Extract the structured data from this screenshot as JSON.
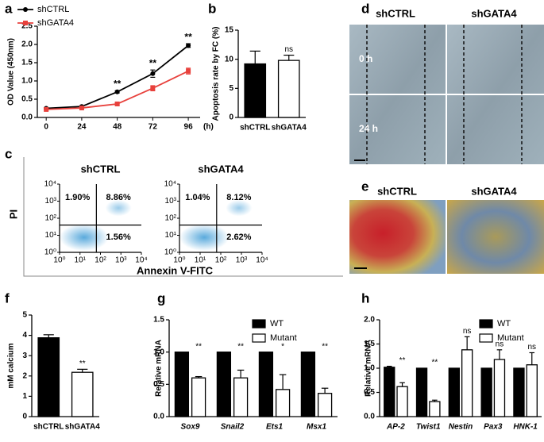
{
  "chart_data": [
    {
      "type": "line",
      "panel": "a",
      "ylabel": "OD Value (450nm)",
      "xlabel": "(h)",
      "x": [
        0,
        24,
        48,
        72,
        96
      ],
      "xlim": [
        -6,
        104
      ],
      "xticks": [
        0,
        24,
        48,
        72,
        96
      ],
      "ylim": [
        0,
        2.5
      ],
      "yticks": [
        {
          "value": 0,
          "label": "0.0"
        },
        0.5,
        {
          "value": 1,
          "label": "1.0"
        },
        1.5,
        {
          "value": 2,
          "label": "2.0"
        },
        2.5
      ],
      "series": [
        {
          "name": "shCTRL",
          "color": "#000000",
          "marker": "circle",
          "values": [
            0.25,
            0.3,
            0.7,
            1.2,
            1.97
          ],
          "errors": [
            0.02,
            0.02,
            0.03,
            0.1,
            0.05
          ]
        },
        {
          "name": "shGATA4",
          "color": "#e8413c",
          "marker": "square",
          "values": [
            0.22,
            0.26,
            0.37,
            0.8,
            1.27
          ],
          "errors": [
            0.02,
            0.02,
            0.03,
            0.07,
            0.08
          ]
        }
      ],
      "annotations": [
        null,
        null,
        "**",
        "**",
        "**"
      ],
      "legend": "upper left"
    },
    {
      "type": "bar",
      "panel": "b",
      "ylabel": "Apoptosis rate by FC (%)",
      "categories": [
        "shCTRL",
        "shGATA4"
      ],
      "values": [
        9.2,
        9.8
      ],
      "errors": [
        2.2,
        0.9
      ],
      "colors": [
        "#000000",
        "#ffffff"
      ],
      "ylim": [
        0,
        15
      ],
      "yticks": [
        0,
        5,
        10,
        15
      ],
      "annotations": [
        null,
        "ns"
      ]
    },
    {
      "type": "scatter",
      "panel": "c",
      "xlabel": "Annexin V-FITC",
      "ylabel": "PI",
      "xscale": "log",
      "yscale": "log",
      "xlim": [
        1,
        10000
      ],
      "ylim": [
        1,
        10000
      ],
      "xticks": [
        {
          "value": 1,
          "label": "10⁰"
        },
        {
          "value": 10,
          "label": "10¹"
        },
        {
          "value": 100,
          "label": "10²"
        },
        {
          "value": 1000,
          "label": "10³"
        },
        {
          "value": 10000,
          "label": "10⁴"
        }
      ],
      "yticks": [
        {
          "value": 1,
          "label": "10⁰"
        },
        {
          "value": 10,
          "label": "10¹"
        },
        {
          "value": 100,
          "label": "10²"
        },
        {
          "value": 1000,
          "label": "10³"
        },
        {
          "value": 10000,
          "label": "10⁴"
        }
      ],
      "subplots": [
        {
          "title": "shCTRL",
          "values": [
            1.9,
            8.86,
            1.56
          ],
          "value_labels": [
            "1.90%",
            "8.86%",
            "1.56%"
          ]
        },
        {
          "title": "shGATA4",
          "values": [
            1.04,
            8.12,
            2.62
          ],
          "value_labels": [
            "1.04%",
            "8.12%",
            "2.62%"
          ]
        }
      ]
    },
    {
      "type": "bar",
      "panel": "f",
      "ylabel": "mM calcium",
      "categories": [
        "shCTRL",
        "shGATA4"
      ],
      "values": [
        3.88,
        2.18
      ],
      "errors": [
        0.15,
        0.15
      ],
      "colors": [
        "#000000",
        "#ffffff"
      ],
      "ylim": [
        0,
        5
      ],
      "yticks": [
        0,
        1,
        2,
        3,
        4,
        5
      ],
      "annotations": [
        null,
        "**"
      ]
    },
    {
      "type": "bar",
      "panel": "g",
      "ylabel": "Relative mRNA",
      "categories": [
        "Sox9",
        "Snail2",
        "Ets1",
        "Msx1"
      ],
      "series": [
        {
          "name": "WT",
          "color": "#000000",
          "values": [
            1,
            1,
            1,
            1
          ],
          "errors": [
            null,
            null,
            null,
            null
          ]
        },
        {
          "name": "Mutant",
          "color": "#ffffff",
          "values": [
            0.6,
            0.6,
            0.42,
            0.36
          ],
          "errors": [
            0.02,
            0.12,
            0.23,
            0.08
          ]
        }
      ],
      "ylim": [
        0,
        1.5
      ],
      "yticks": [
        {
          "value": 0,
          "label": "0.0"
        },
        0.5,
        {
          "value": 1,
          "label": "1.0"
        },
        1.5
      ],
      "annotations": [
        "**",
        "**",
        "*",
        "**"
      ],
      "legend": "upper right"
    },
    {
      "type": "bar",
      "panel": "h",
      "ylabel": "Relative mRNA",
      "categories": [
        "AP-2",
        "Twist1",
        "Nestin",
        "Pax3",
        "HNK-1"
      ],
      "series": [
        {
          "name": "WT",
          "color": "#000000",
          "values": [
            1.02,
            1,
            1,
            1,
            1
          ],
          "errors": [
            0.02,
            null,
            null,
            null,
            null
          ]
        },
        {
          "name": "Mutant",
          "color": "#ffffff",
          "values": [
            0.62,
            0.31,
            1.38,
            1.18,
            1.07
          ],
          "errors": [
            0.08,
            0.03,
            0.27,
            0.2,
            0.25
          ]
        }
      ],
      "ylim": [
        0,
        2
      ],
      "yticks": [
        {
          "value": 0,
          "label": "0.0"
        },
        0.5,
        {
          "value": 1,
          "label": "1.0"
        },
        1.5,
        {
          "value": 2,
          "label": "2.0"
        }
      ],
      "annotations": [
        "**",
        "**",
        "ns",
        "ns",
        "ns"
      ],
      "legend": "upper right"
    }
  ],
  "image_panels": [
    {
      "panel": "d",
      "columns": [
        "shCTRL",
        "shGATA4"
      ],
      "rows": [
        "0 h",
        "24 h"
      ]
    },
    {
      "panel": "e",
      "columns": [
        "shCTRL",
        "shGATA4"
      ]
    }
  ]
}
